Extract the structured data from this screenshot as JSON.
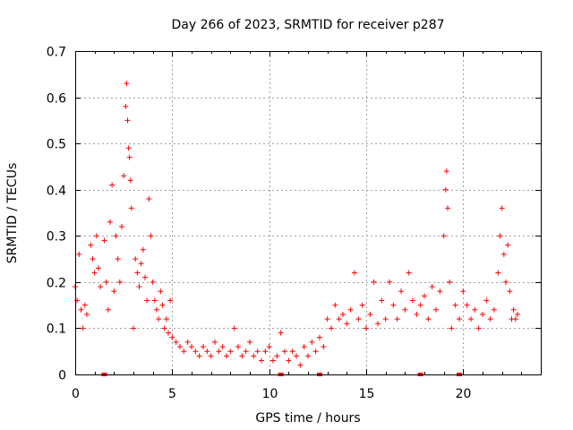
{
  "chart_data": {
    "type": "scatter",
    "title": "Day 266 of 2023, SRMTID for receiver p287",
    "xlabel": "GPS time / hours",
    "ylabel": "SRMTID / TECUs",
    "xlim": [
      0,
      24
    ],
    "ylim": [
      0,
      0.7
    ],
    "x_ticks": [
      0,
      5,
      10,
      15,
      20
    ],
    "x_tick_labels": [
      "0",
      "5",
      "10",
      "15",
      "20"
    ],
    "y_ticks": [
      0,
      0.1,
      0.2,
      0.3,
      0.4,
      0.5,
      0.6,
      0.7
    ],
    "y_tick_labels": [
      "0",
      "0.1",
      "0.2",
      "0.3",
      "0.4",
      "0.5",
      "0.6",
      "0.7"
    ],
    "grid": true,
    "marker": "plus",
    "color": "#ff0000",
    "series": [
      {
        "name": "SRMTID",
        "points": [
          [
            0.0,
            0.19
          ],
          [
            0.1,
            0.16
          ],
          [
            0.2,
            0.26
          ],
          [
            0.3,
            0.14
          ],
          [
            0.4,
            0.1
          ],
          [
            0.5,
            0.15
          ],
          [
            0.6,
            0.13
          ],
          [
            0.8,
            0.28
          ],
          [
            0.9,
            0.25
          ],
          [
            1.0,
            0.22
          ],
          [
            1.1,
            0.3
          ],
          [
            1.2,
            0.23
          ],
          [
            1.3,
            0.19
          ],
          [
            1.5,
            0.29
          ],
          [
            1.6,
            0.2
          ],
          [
            1.7,
            0.14
          ],
          [
            1.8,
            0.33
          ],
          [
            1.9,
            0.41
          ],
          [
            2.0,
            0.18
          ],
          [
            2.1,
            0.3
          ],
          [
            2.2,
            0.25
          ],
          [
            2.3,
            0.2
          ],
          [
            2.4,
            0.32
          ],
          [
            2.5,
            0.43
          ],
          [
            2.6,
            0.58
          ],
          [
            2.65,
            0.63
          ],
          [
            2.7,
            0.55
          ],
          [
            2.75,
            0.49
          ],
          [
            2.8,
            0.47
          ],
          [
            2.85,
            0.42
          ],
          [
            2.9,
            0.36
          ],
          [
            3.0,
            0.1
          ],
          [
            3.1,
            0.25
          ],
          [
            3.2,
            0.22
          ],
          [
            3.3,
            0.19
          ],
          [
            3.4,
            0.24
          ],
          [
            3.5,
            0.27
          ],
          [
            3.6,
            0.21
          ],
          [
            3.7,
            0.16
          ],
          [
            3.8,
            0.38
          ],
          [
            3.9,
            0.3
          ],
          [
            4.0,
            0.2
          ],
          [
            4.1,
            0.16
          ],
          [
            4.2,
            0.14
          ],
          [
            4.3,
            0.12
          ],
          [
            4.4,
            0.18
          ],
          [
            4.5,
            0.15
          ],
          [
            4.6,
            0.1
          ],
          [
            4.7,
            0.12
          ],
          [
            4.8,
            0.09
          ],
          [
            4.9,
            0.16
          ],
          [
            5.0,
            0.08
          ],
          [
            5.2,
            0.07
          ],
          [
            5.4,
            0.06
          ],
          [
            5.6,
            0.05
          ],
          [
            5.8,
            0.07
          ],
          [
            6.0,
            0.06
          ],
          [
            6.2,
            0.05
          ],
          [
            6.4,
            0.04
          ],
          [
            6.6,
            0.06
          ],
          [
            6.8,
            0.05
          ],
          [
            7.0,
            0.04
          ],
          [
            7.2,
            0.07
          ],
          [
            7.4,
            0.05
          ],
          [
            7.6,
            0.06
          ],
          [
            7.8,
            0.04
          ],
          [
            8.0,
            0.05
          ],
          [
            8.2,
            0.1
          ],
          [
            8.4,
            0.06
          ],
          [
            8.6,
            0.04
          ],
          [
            8.8,
            0.05
          ],
          [
            9.0,
            0.07
          ],
          [
            9.2,
            0.04
          ],
          [
            9.4,
            0.05
          ],
          [
            9.6,
            0.03
          ],
          [
            9.8,
            0.05
          ],
          [
            10.0,
            0.06
          ],
          [
            10.2,
            0.03
          ],
          [
            10.4,
            0.04
          ],
          [
            10.6,
            0.09
          ],
          [
            10.8,
            0.05
          ],
          [
            11.0,
            0.03
          ],
          [
            11.2,
            0.05
          ],
          [
            11.4,
            0.04
          ],
          [
            11.6,
            0.02
          ],
          [
            11.8,
            0.06
          ],
          [
            12.0,
            0.04
          ],
          [
            12.2,
            0.07
          ],
          [
            12.4,
            0.05
          ],
          [
            12.6,
            0.08
          ],
          [
            12.8,
            0.06
          ],
          [
            13.0,
            0.12
          ],
          [
            13.2,
            0.1
          ],
          [
            13.4,
            0.15
          ],
          [
            13.6,
            0.12
          ],
          [
            13.8,
            0.13
          ],
          [
            14.0,
            0.11
          ],
          [
            14.2,
            0.14
          ],
          [
            14.4,
            0.22
          ],
          [
            14.6,
            0.12
          ],
          [
            14.8,
            0.15
          ],
          [
            15.0,
            0.1
          ],
          [
            15.2,
            0.13
          ],
          [
            15.4,
            0.2
          ],
          [
            15.6,
            0.11
          ],
          [
            15.8,
            0.16
          ],
          [
            16.0,
            0.12
          ],
          [
            16.2,
            0.2
          ],
          [
            16.4,
            0.15
          ],
          [
            16.6,
            0.12
          ],
          [
            16.8,
            0.18
          ],
          [
            17.0,
            0.14
          ],
          [
            17.2,
            0.22
          ],
          [
            17.4,
            0.16
          ],
          [
            17.6,
            0.13
          ],
          [
            17.8,
            0.15
          ],
          [
            18.0,
            0.17
          ],
          [
            18.2,
            0.12
          ],
          [
            18.4,
            0.19
          ],
          [
            18.6,
            0.14
          ],
          [
            18.8,
            0.18
          ],
          [
            19.0,
            0.3
          ],
          [
            19.1,
            0.4
          ],
          [
            19.15,
            0.44
          ],
          [
            19.2,
            0.36
          ],
          [
            19.3,
            0.2
          ],
          [
            19.4,
            0.1
          ],
          [
            19.6,
            0.15
          ],
          [
            19.8,
            0.12
          ],
          [
            20.0,
            0.18
          ],
          [
            20.2,
            0.15
          ],
          [
            20.4,
            0.12
          ],
          [
            20.6,
            0.14
          ],
          [
            20.8,
            0.1
          ],
          [
            21.0,
            0.13
          ],
          [
            21.2,
            0.16
          ],
          [
            21.4,
            0.12
          ],
          [
            21.6,
            0.14
          ],
          [
            21.8,
            0.22
          ],
          [
            21.9,
            0.3
          ],
          [
            22.0,
            0.36
          ],
          [
            22.1,
            0.26
          ],
          [
            22.2,
            0.2
          ],
          [
            22.3,
            0.28
          ],
          [
            22.4,
            0.18
          ],
          [
            22.5,
            0.12
          ],
          [
            22.6,
            0.14
          ],
          [
            22.7,
            0.12
          ],
          [
            22.8,
            0.13
          ]
        ]
      }
    ],
    "gap_markers_x": [
      1.5,
      10.6,
      12.6,
      17.8,
      19.8
    ]
  }
}
